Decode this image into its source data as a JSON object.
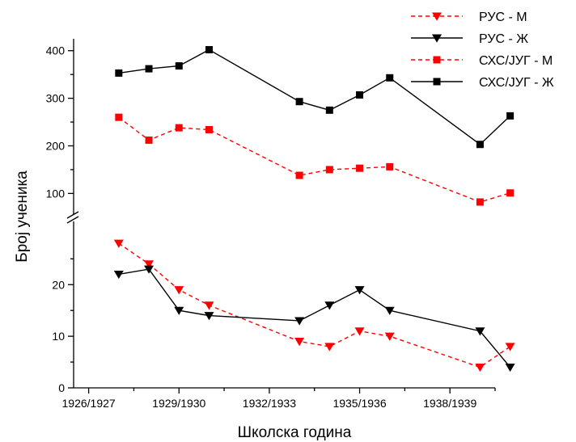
{
  "chart_data": {
    "type": "line",
    "xlabel": "Школска година",
    "ylabel": "Број ученика",
    "x_tick_labels": [
      "1926/1927",
      "1929/1930",
      "1932/1933",
      "1935/1936",
      "1938/1939"
    ],
    "x_tick_positions": [
      0,
      3,
      6,
      9,
      12
    ],
    "x_range": [
      -0.5,
      13.5
    ],
    "points_x": [
      1,
      2,
      3,
      4,
      7,
      8,
      9,
      10,
      13,
      14
    ],
    "axis_break": true,
    "lower_ylim": [
      0,
      31
    ],
    "lower_yticks": [
      0,
      10,
      20
    ],
    "upper_ylim": [
      65,
      425
    ],
    "upper_yticks": [
      100,
      200,
      300,
      400
    ],
    "legend_position": "top-right",
    "series": [
      {
        "name": "РУС - М",
        "color": "#ff0000",
        "dash": true,
        "marker": "triangle-down",
        "panel": "lower",
        "values": [
          28,
          24,
          19,
          16,
          9,
          8,
          11,
          10,
          4,
          8
        ]
      },
      {
        "name": "РУС - Ж",
        "color": "#000000",
        "dash": false,
        "marker": "triangle-down",
        "panel": "lower",
        "values": [
          22,
          23,
          15,
          14,
          13,
          16,
          19,
          15,
          11,
          4
        ]
      },
      {
        "name": "СХС/ЈУГ - М",
        "color": "#ff0000",
        "dash": true,
        "marker": "square",
        "panel": "upper",
        "values": [
          260,
          212,
          238,
          234,
          138,
          150,
          153,
          156,
          82,
          101
        ]
      },
      {
        "name": "СХС/ЈУГ - Ж",
        "color": "#000000",
        "dash": false,
        "marker": "square",
        "panel": "upper",
        "values": [
          353,
          362,
          368,
          402,
          293,
          275,
          307,
          343,
          203,
          263
        ]
      }
    ]
  }
}
